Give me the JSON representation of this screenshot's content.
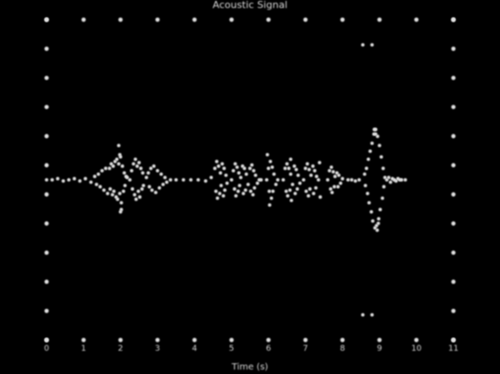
{
  "chart_data": {
    "type": "scatter",
    "title": "Acoustic Signal",
    "xlabel": "Time (s)",
    "ylabel": "",
    "xlim": [
      0,
      11
    ],
    "ylim": [
      -1.4,
      1.4
    ],
    "x_ticks": [
      "0",
      "1",
      "2",
      "3",
      "4",
      "5",
      "6",
      "7",
      "8",
      "9",
      "10",
      "11"
    ],
    "y_ticks": [],
    "grid": false,
    "legend": "none",
    "marker_color": "#e0e0e0",
    "background": "#000000",
    "series": [
      {
        "values": [
          [
            0.0,
            0.0
          ],
          [
            0.15,
            0.0
          ],
          [
            0.3,
            0.01
          ],
          [
            0.45,
            -0.01
          ],
          [
            0.6,
            0.0
          ],
          [
            0.75,
            0.01
          ],
          [
            0.9,
            -0.01
          ],
          [
            1.05,
            0.01
          ],
          [
            1.2,
            -0.02
          ],
          [
            1.3,
            0.03
          ],
          [
            1.35,
            -0.04
          ],
          [
            1.4,
            0.05
          ],
          [
            1.45,
            -0.06
          ],
          [
            1.5,
            0.08
          ],
          [
            1.55,
            -0.09
          ],
          [
            1.6,
            0.1
          ],
          [
            1.65,
            -0.12
          ],
          [
            1.7,
            0.1
          ],
          [
            1.72,
            -0.08
          ],
          [
            1.75,
            0.14
          ],
          [
            1.78,
            -0.13
          ],
          [
            1.8,
            0.12
          ],
          [
            1.82,
            -0.1
          ],
          [
            1.85,
            0.16
          ],
          [
            1.88,
            -0.15
          ],
          [
            1.9,
            0.18
          ],
          [
            1.92,
            -0.17
          ],
          [
            1.95,
            0.14
          ],
          [
            1.98,
            -0.12
          ],
          [
            2.0,
            0.2
          ],
          [
            2.02,
            -0.2
          ],
          [
            2.05,
            0.12
          ],
          [
            2.08,
            -0.1
          ],
          [
            2.1,
            0.06
          ],
          [
            2.12,
            -0.05
          ],
          [
            2.15,
            0.03
          ],
          [
            2.18,
            0.02
          ],
          [
            1.95,
            0.3
          ],
          [
            2.0,
            -0.28
          ],
          [
            1.98,
            0.22
          ],
          [
            2.02,
            -0.26
          ],
          [
            2.25,
            0.0
          ],
          [
            2.3,
            0.08
          ],
          [
            2.32,
            -0.08
          ],
          [
            2.35,
            0.14
          ],
          [
            2.38,
            -0.13
          ],
          [
            2.4,
            0.18
          ],
          [
            2.42,
            -0.17
          ],
          [
            2.45,
            0.12
          ],
          [
            2.48,
            -0.1
          ],
          [
            2.5,
            0.15
          ],
          [
            2.52,
            -0.15
          ],
          [
            2.55,
            0.1
          ],
          [
            2.58,
            -0.08
          ],
          [
            2.6,
            0.06
          ],
          [
            2.62,
            -0.05
          ],
          [
            2.7,
            0.02
          ],
          [
            2.75,
            0.06
          ],
          [
            2.78,
            -0.06
          ],
          [
            2.82,
            0.1
          ],
          [
            2.85,
            -0.09
          ],
          [
            2.9,
            0.12
          ],
          [
            2.95,
            -0.11
          ],
          [
            3.0,
            0.08
          ],
          [
            3.05,
            -0.07
          ],
          [
            3.1,
            0.05
          ],
          [
            3.15,
            -0.04
          ],
          [
            3.2,
            0.02
          ],
          [
            3.25,
            -0.02
          ],
          [
            3.35,
            0.0
          ],
          [
            3.5,
            0.0
          ],
          [
            3.7,
            0.0
          ],
          [
            3.9,
            0.0
          ],
          [
            4.1,
            0.0
          ],
          [
            4.3,
            -0.01
          ],
          [
            4.45,
            0.02
          ],
          [
            4.55,
            0.1
          ],
          [
            4.58,
            -0.1
          ],
          [
            4.6,
            0.16
          ],
          [
            4.62,
            -0.16
          ],
          [
            4.65,
            0.12
          ],
          [
            4.68,
            -0.12
          ],
          [
            4.7,
            0.06
          ],
          [
            4.72,
            -0.05
          ],
          [
            4.75,
            0.14
          ],
          [
            4.78,
            -0.14
          ],
          [
            4.8,
            0.1
          ],
          [
            4.82,
            -0.09
          ],
          [
            4.85,
            0.04
          ],
          [
            4.88,
            -0.03
          ],
          [
            5.0,
            0.0
          ],
          [
            5.05,
            0.08
          ],
          [
            5.08,
            -0.08
          ],
          [
            5.1,
            0.14
          ],
          [
            5.12,
            -0.14
          ],
          [
            5.15,
            0.11
          ],
          [
            5.18,
            -0.1
          ],
          [
            5.2,
            0.06
          ],
          [
            5.22,
            -0.05
          ],
          [
            5.25,
            0.02
          ],
          [
            5.3,
            0.12
          ],
          [
            5.32,
            -0.12
          ],
          [
            5.35,
            0.1
          ],
          [
            5.38,
            -0.09
          ],
          [
            5.4,
            0.05
          ],
          [
            5.45,
            -0.04
          ],
          [
            5.5,
            0.1
          ],
          [
            5.52,
            -0.1
          ],
          [
            5.55,
            0.13
          ],
          [
            5.58,
            -0.13
          ],
          [
            5.6,
            0.08
          ],
          [
            5.62,
            -0.07
          ],
          [
            5.65,
            0.04
          ],
          [
            5.7,
            -0.03
          ],
          [
            5.75,
            0.0
          ],
          [
            5.8,
            0.0
          ],
          [
            5.95,
            0.0
          ],
          [
            6.0,
            0.1
          ],
          [
            6.02,
            -0.1
          ],
          [
            6.05,
            0.16
          ],
          [
            6.08,
            -0.16
          ],
          [
            6.1,
            0.11
          ],
          [
            6.12,
            -0.1
          ],
          [
            6.15,
            0.05
          ],
          [
            6.2,
            -0.04
          ],
          [
            6.25,
            0.0
          ],
          [
            5.97,
            0.22
          ],
          [
            6.03,
            -0.22
          ],
          [
            6.4,
            0.0
          ],
          [
            6.45,
            0.1
          ],
          [
            6.48,
            -0.1
          ],
          [
            6.5,
            0.14
          ],
          [
            6.52,
            -0.14
          ],
          [
            6.55,
            0.1
          ],
          [
            6.58,
            -0.09
          ],
          [
            6.6,
            0.05
          ],
          [
            6.65,
            -0.04
          ],
          [
            6.7,
            0.12
          ],
          [
            6.72,
            -0.12
          ],
          [
            6.75,
            0.09
          ],
          [
            6.78,
            -0.08
          ],
          [
            6.8,
            0.04
          ],
          [
            6.85,
            -0.03
          ],
          [
            6.6,
            0.18
          ],
          [
            6.62,
            -0.18
          ],
          [
            6.95,
            0.0
          ],
          [
            7.0,
            0.1
          ],
          [
            7.02,
            -0.1
          ],
          [
            7.05,
            0.14
          ],
          [
            7.08,
            -0.14
          ],
          [
            7.1,
            0.09
          ],
          [
            7.12,
            -0.08
          ],
          [
            7.15,
            0.04
          ],
          [
            7.2,
            0.12
          ],
          [
            7.22,
            -0.12
          ],
          [
            7.25,
            0.08
          ],
          [
            7.28,
            -0.07
          ],
          [
            7.3,
            0.03
          ],
          [
            7.35,
            0.0
          ],
          [
            7.38,
            0.15
          ],
          [
            7.4,
            -0.15
          ],
          [
            7.6,
            0.0
          ],
          [
            7.65,
            0.08
          ],
          [
            7.68,
            -0.08
          ],
          [
            7.7,
            0.11
          ],
          [
            7.72,
            -0.11
          ],
          [
            7.75,
            0.07
          ],
          [
            7.78,
            -0.06
          ],
          [
            7.8,
            0.03
          ],
          [
            7.85,
            0.06
          ],
          [
            7.88,
            -0.06
          ],
          [
            7.9,
            0.04
          ],
          [
            7.95,
            -0.03
          ],
          [
            8.0,
            0.01
          ],
          [
            8.15,
            0.0
          ],
          [
            8.25,
            0.0
          ],
          [
            8.35,
            -0.01
          ],
          [
            8.45,
            0.0
          ],
          [
            8.6,
            0.05
          ],
          [
            8.62,
            -0.05
          ],
          [
            8.65,
            0.1
          ],
          [
            8.68,
            -0.12
          ],
          [
            8.7,
            0.18
          ],
          [
            8.72,
            -0.2
          ],
          [
            8.75,
            0.25
          ],
          [
            8.78,
            -0.28
          ],
          [
            8.8,
            0.32
          ],
          [
            8.82,
            -0.36
          ],
          [
            8.85,
            0.4
          ],
          [
            8.88,
            -0.42
          ],
          [
            8.9,
            0.44
          ],
          [
            8.92,
            -0.4
          ],
          [
            8.95,
            0.38
          ],
          [
            8.98,
            -0.34
          ],
          [
            9.0,
            0.3
          ],
          [
            9.02,
            -0.26
          ],
          [
            9.05,
            0.2
          ],
          [
            9.08,
            -0.16
          ],
          [
            9.1,
            0.1
          ],
          [
            9.12,
            -0.06
          ],
          [
            9.15,
            0.02
          ],
          [
            8.86,
            0.44
          ],
          [
            8.9,
            0.4
          ],
          [
            8.94,
            -0.44
          ],
          [
            8.97,
            -0.38
          ],
          [
            9.2,
            0.0
          ],
          [
            9.25,
            0.02
          ],
          [
            9.3,
            -0.02
          ],
          [
            9.35,
            0.01
          ],
          [
            9.4,
            0.0
          ],
          [
            9.45,
            -0.01
          ],
          [
            9.5,
            0.01
          ],
          [
            9.55,
            0.0
          ],
          [
            9.6,
            0.0
          ],
          [
            9.7,
            0.0
          ]
        ]
      },
      {
        "values": [
          [
            8.55,
            1.18
          ],
          [
            8.8,
            1.18
          ],
          [
            8.55,
            -1.18
          ],
          [
            8.8,
            -1.18
          ]
        ]
      }
    ]
  }
}
